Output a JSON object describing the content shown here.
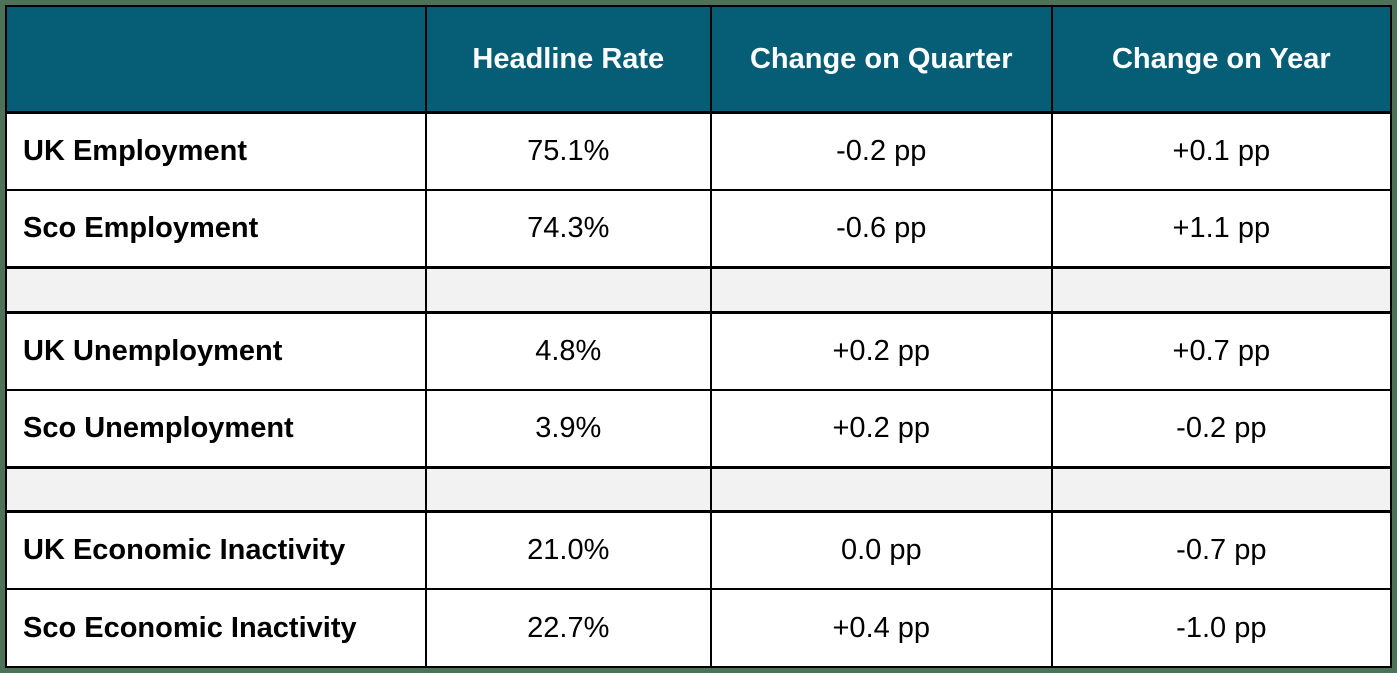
{
  "colors": {
    "header_bg": "#055E75",
    "header_text": "#FFFFFF",
    "spacer_bg": "#F2F2F2",
    "frame_border": "#4E7257",
    "grid_border": "#000000"
  },
  "table": {
    "columns": {
      "label": "",
      "headline_rate": "Headline Rate",
      "change_on_quarter": "Change on Quarter",
      "change_on_year": "Change on Year"
    },
    "rows": [
      {
        "label": "UK Employment",
        "headline_rate": "75.1%",
        "change_on_quarter": "-0.2 pp",
        "change_on_year": "+0.1 pp"
      },
      {
        "label": "Sco Employment",
        "headline_rate": "74.3%",
        "change_on_quarter": "-0.6 pp",
        "change_on_year": "+1.1 pp"
      },
      {
        "label": "UK Unemployment",
        "headline_rate": "4.8%",
        "change_on_quarter": "+0.2 pp",
        "change_on_year": "+0.7 pp"
      },
      {
        "label": "Sco Unemployment",
        "headline_rate": "3.9%",
        "change_on_quarter": "+0.2 pp",
        "change_on_year": "-0.2 pp"
      },
      {
        "label": "UK Economic Inactivity",
        "headline_rate": "21.0%",
        "change_on_quarter": "0.0 pp",
        "change_on_year": "-0.7 pp"
      },
      {
        "label": "Sco Economic Inactivity",
        "headline_rate": "22.7%",
        "change_on_quarter": "+0.4 pp",
        "change_on_year": "-1.0 pp"
      }
    ]
  },
  "chart_data": {
    "type": "table",
    "title": "",
    "columns": [
      "",
      "Headline Rate",
      "Change on Quarter",
      "Change on Year"
    ],
    "rows": [
      [
        "UK Employment",
        "75.1%",
        "-0.2 pp",
        "+0.1 pp"
      ],
      [
        "Sco Employment",
        "74.3%",
        "-0.6 pp",
        "+1.1 pp"
      ],
      [
        "UK Unemployment",
        "4.8%",
        "+0.2 pp",
        "+0.7 pp"
      ],
      [
        "Sco Unemployment",
        "3.9%",
        "+0.2 pp",
        "-0.2 pp"
      ],
      [
        "UK Economic Inactivity",
        "21.0%",
        "0.0 pp",
        "-0.7 pp"
      ],
      [
        "Sco Economic Inactivity",
        "22.7%",
        "+0.4 pp",
        "-1.0 pp"
      ]
    ]
  }
}
